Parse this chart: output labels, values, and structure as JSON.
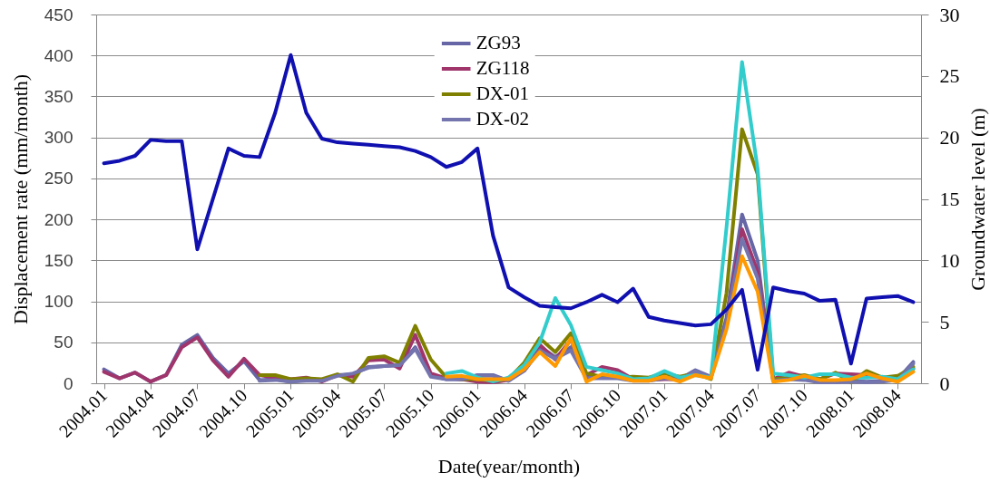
{
  "chart_data": {
    "type": "line",
    "xlabel": "Date(year/month)",
    "ylabel": "Displacement rate (mm/month)",
    "y2label": "Groundwater level (m)",
    "categories": [
      "2004.01",
      null,
      null,
      "2004.04",
      null,
      null,
      "2004.07",
      null,
      null,
      "2004.10",
      null,
      null,
      "2005.01",
      null,
      null,
      "2005.04",
      null,
      null,
      "2005.07",
      null,
      null,
      "2005.10",
      null,
      null,
      "2006.01",
      null,
      null,
      "2006.04",
      null,
      null,
      "2006.07",
      null,
      null,
      "2006.10",
      null,
      null,
      "2007.01",
      null,
      null,
      "2007.04",
      null,
      null,
      "2007.07",
      null,
      null,
      "2007.10",
      null,
      null,
      "2008.01",
      null,
      null,
      "2008.04",
      null
    ],
    "series": [
      {
        "name": "ZG93",
        "color": "#6666a6",
        "values": [
          17,
          6,
          13,
          2,
          10,
          47,
          59,
          31,
          12,
          27,
          4,
          5,
          2,
          4,
          4,
          10,
          11,
          20,
          21,
          22,
          44,
          10,
          5,
          5,
          10,
          10,
          3,
          18,
          45,
          32,
          44,
          8,
          7,
          7,
          4,
          4,
          7,
          5,
          16,
          8,
          80,
          206,
          150,
          4,
          6,
          5,
          2,
          2,
          3,
          2,
          3,
          5,
          26
        ]
      },
      {
        "name": "ZG118",
        "color": "#a0356c",
        "values": [
          14,
          6,
          13,
          2,
          10,
          44,
          56,
          28,
          8,
          30,
          10,
          7,
          5,
          7,
          2,
          10,
          8,
          28,
          29,
          18,
          59,
          12,
          6,
          5,
          2,
          1,
          4,
          20,
          47,
          29,
          53,
          10,
          20,
          16,
          5,
          4,
          5,
          5,
          14,
          7,
          75,
          188,
          136,
          5,
          13,
          8,
          5,
          12,
          11,
          10,
          7,
          7,
          18
        ]
      },
      {
        "name": "DX-01",
        "color": "#808000",
        "values": [
          null,
          null,
          null,
          null,
          null,
          null,
          null,
          null,
          null,
          null,
          10,
          10,
          5,
          6,
          5,
          11,
          2,
          31,
          33,
          25,
          70,
          29,
          7,
          5,
          5,
          3,
          5,
          25,
          55,
          38,
          61,
          12,
          8,
          7,
          8,
          7,
          12,
          8,
          12,
          5,
          110,
          310,
          255,
          5,
          7,
          10,
          5,
          13,
          1,
          15,
          7,
          9,
          20
        ]
      },
      {
        "name": "DX-02",
        "color": "#7474ae",
        "values": [
          null,
          null,
          null,
          null,
          null,
          null,
          null,
          null,
          null,
          null,
          3,
          4,
          2,
          3,
          3,
          9,
          12,
          19,
          21,
          22,
          42,
          8,
          5,
          5,
          9,
          9,
          3,
          15,
          40,
          30,
          40,
          6,
          6,
          6,
          3,
          3,
          6,
          4,
          15,
          7,
          75,
          176,
          128,
          3,
          5,
          4,
          1,
          1,
          2,
          1,
          2,
          4,
          24
        ]
      },
      {
        "color": "#33cccc",
        "values": [
          null,
          null,
          null,
          null,
          null,
          null,
          null,
          null,
          null,
          null,
          null,
          null,
          null,
          null,
          null,
          null,
          null,
          null,
          null,
          null,
          null,
          null,
          12,
          15,
          7,
          2,
          7,
          22,
          50,
          104,
          71,
          20,
          16,
          12,
          5,
          6,
          15,
          7,
          10,
          7,
          190,
          392,
          262,
          12,
          10,
          7,
          11,
          11,
          7,
          7,
          8,
          5,
          17
        ]
      },
      {
        "color": "#ff9900",
        "values": [
          null,
          null,
          null,
          null,
          null,
          null,
          null,
          null,
          null,
          null,
          null,
          null,
          null,
          null,
          null,
          null,
          null,
          null,
          null,
          null,
          null,
          null,
          8,
          9,
          5,
          5,
          5,
          17,
          38,
          21,
          55,
          2,
          11,
          8,
          3,
          3,
          8,
          2,
          10,
          6,
          66,
          155,
          112,
          2,
          4,
          9,
          4,
          4,
          5,
          12,
          6,
          2,
          14
        ]
      },
      {
        "color": "#1010b0",
        "axis": "y2",
        "values": [
          17.9,
          18.1,
          18.5,
          19.8,
          19.7,
          19.7,
          10.9,
          15.0,
          19.1,
          18.5,
          18.4,
          22.0,
          26.7,
          22.0,
          19.9,
          19.6,
          19.5,
          19.4,
          19.3,
          19.2,
          18.9,
          18.4,
          17.6,
          18.0,
          19.1,
          12.0,
          7.8,
          7.0,
          6.3,
          6.2,
          6.1,
          6.6,
          7.2,
          6.6,
          7.7,
          5.4,
          5.1,
          4.9,
          4.7,
          4.8,
          6.0,
          7.6,
          1.1,
          7.8,
          7.5,
          7.3,
          6.7,
          6.8,
          1.6,
          6.9,
          7.0,
          7.1,
          6.6
        ]
      }
    ],
    "ylim": [
      0,
      450
    ],
    "yticks": [
      0,
      50,
      100,
      150,
      200,
      250,
      300,
      350,
      400,
      450
    ],
    "y2lim": [
      0,
      30
    ],
    "y2ticks": [
      0,
      5,
      10,
      15,
      20,
      25,
      30
    ],
    "grid": "y",
    "legend": "top",
    "line_style": "solid"
  }
}
